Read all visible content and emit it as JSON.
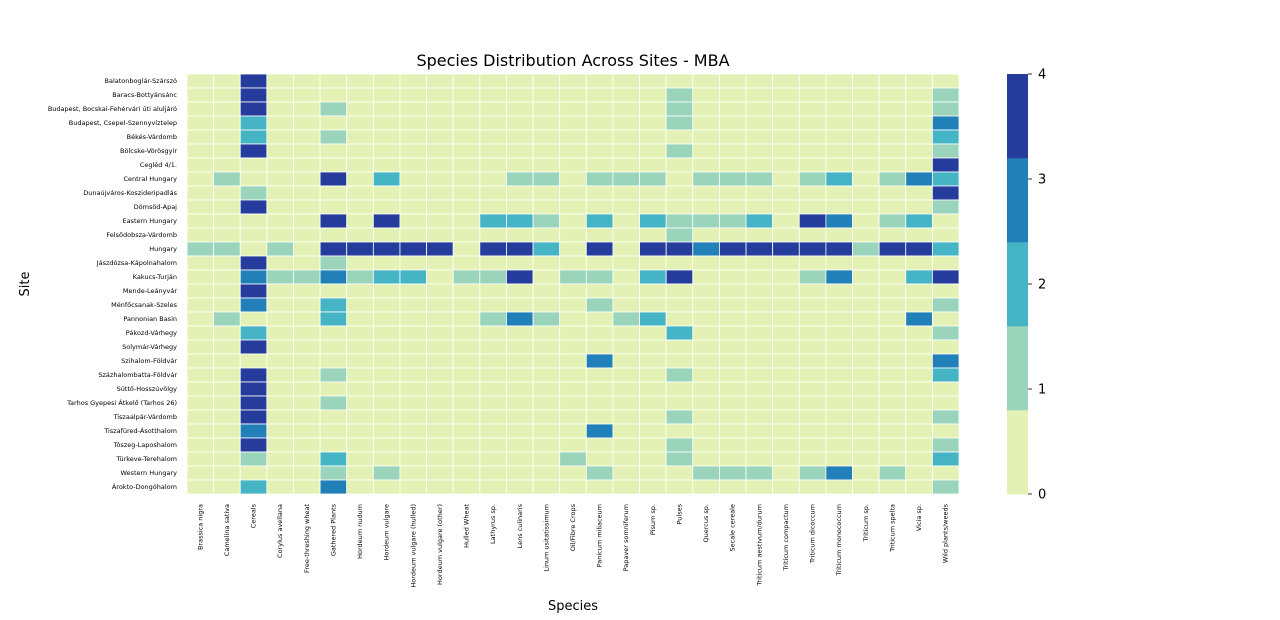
{
  "chart_data": {
    "type": "heatmap",
    "title": "Species Distribution Across Sites - MBA",
    "xlabel": "Species",
    "ylabel": "Site",
    "colorbar": {
      "min": 0,
      "max": 4,
      "ticks": [
        "0",
        "1",
        "2",
        "3",
        "4"
      ],
      "colors": [
        "#e3f2b4",
        "#99d4bb",
        "#45b4c4",
        "#2180b8",
        "#253c9c"
      ]
    },
    "columns": [
      "Brassica nigra",
      "Camelina sativa",
      "Cereals",
      "Corylus avellana",
      "Free-threshing wheat",
      "Gathered Plants",
      "Hordeum nudum",
      "Hordeum vulgare",
      "Hordeum vulgare (hulled)",
      "Hordeum vulgare (other)",
      "Hulled Wheat",
      "Lathyrus sp.",
      "Lens culinaris",
      "Linum usitatissimum",
      "Oil/Fibre Crops",
      "Panicum miliaceum",
      "Papaver somniferum",
      "Pisum sp.",
      "Pulses",
      "Quercus sp.",
      "Secale cereale",
      "Triticum aestivum/durum",
      "Triticum compactum",
      "Triticum dicoccum",
      "Triticum monococcum",
      "Triticum sp.",
      "Triticum spelta",
      "Vicia sp.",
      "Wild plants/weeds"
    ],
    "rows": [
      "Balatonboglár-Szárszó",
      "Baracs-Bottyánsánc",
      "Budapest, Bocskai-Fehérvári úti aluljáró",
      "Budapest, Csepel-Szennyvíztelep",
      "Békés-Várdomb",
      "Bölcske-Vörösgyír",
      "Cegléd 4/1.",
      "Central Hungary",
      "Dunaújváros-Koszideripadlás",
      "Dömsöd-Apaj",
      "Eastern Hungary",
      "Felsődobsza-Várdomb",
      "Hungary",
      "Jászdózsa-Kápolnahalom",
      "Kakucs-Turján",
      "Mende-Leányvár",
      "Ménfőcsanak-Szeles",
      "Pannonian Basin",
      "Pákozd-Várhegy",
      "Solymár-Várhegy",
      "Szihalom-Földvár",
      "Százhalombatta-Földvár",
      "Süttő-Hosszúvölgy",
      "Tarhos Gyepesi Átkelő (Tarhos 26)",
      "Tiszaalpár-Várdomb",
      "Tiszafüred-Ásotthalom",
      "Tószeg-Laposhalom",
      "Türkeve-Terehalom",
      "Western Hungary",
      "Árokto-Dongóhalom"
    ],
    "values": [
      [
        0,
        0,
        4,
        0,
        0,
        0,
        0,
        0,
        0,
        0,
        0,
        0,
        0,
        0,
        0,
        0,
        0,
        0,
        0,
        0,
        0,
        0,
        0,
        0,
        0,
        0,
        0,
        0,
        0
      ],
      [
        0,
        0,
        4,
        0,
        0,
        0,
        0,
        0,
        0,
        0,
        0,
        0,
        0,
        0,
        0,
        0,
        0,
        0,
        1,
        0,
        0,
        0,
        0,
        0,
        0,
        0,
        0,
        0,
        1
      ],
      [
        0,
        0,
        4,
        0,
        0,
        1,
        0,
        0,
        0,
        0,
        0,
        0,
        0,
        0,
        0,
        0,
        0,
        0,
        1,
        0,
        0,
        0,
        0,
        0,
        0,
        0,
        0,
        0,
        1
      ],
      [
        0,
        0,
        2,
        0,
        0,
        0,
        0,
        0,
        0,
        0,
        0,
        0,
        0,
        0,
        0,
        0,
        0,
        0,
        1,
        0,
        0,
        0,
        0,
        0,
        0,
        0,
        0,
        0,
        3
      ],
      [
        0,
        0,
        2,
        0,
        0,
        1,
        0,
        0,
        0,
        0,
        0,
        0,
        0,
        0,
        0,
        0,
        0,
        0,
        0,
        0,
        0,
        0,
        0,
        0,
        0,
        0,
        0,
        0,
        2
      ],
      [
        0,
        0,
        4,
        0,
        0,
        0,
        0,
        0,
        0,
        0,
        0,
        0,
        0,
        0,
        0,
        0,
        0,
        0,
        1,
        0,
        0,
        0,
        0,
        0,
        0,
        0,
        0,
        0,
        1
      ],
      [
        0,
        0,
        0,
        0,
        0,
        0,
        0,
        0,
        0,
        0,
        0,
        0,
        0,
        0,
        0,
        0,
        0,
        0,
        0,
        0,
        0,
        0,
        0,
        0,
        0,
        0,
        0,
        0,
        4
      ],
      [
        0,
        1,
        0,
        0,
        0,
        4,
        0,
        2,
        0,
        0,
        0,
        0,
        1,
        1,
        0,
        1,
        1,
        1,
        0,
        1,
        1,
        1,
        0,
        1,
        2,
        0,
        1,
        3,
        2
      ],
      [
        0,
        0,
        1,
        0,
        0,
        0,
        0,
        0,
        0,
        0,
        0,
        0,
        0,
        0,
        0,
        0,
        0,
        0,
        0,
        0,
        0,
        0,
        0,
        0,
        0,
        0,
        0,
        0,
        4
      ],
      [
        0,
        0,
        4,
        0,
        0,
        0,
        0,
        0,
        0,
        0,
        0,
        0,
        0,
        0,
        0,
        0,
        0,
        0,
        0,
        0,
        0,
        0,
        0,
        0,
        0,
        0,
        0,
        0,
        1
      ],
      [
        0,
        0,
        0,
        0,
        0,
        4,
        0,
        4,
        0,
        0,
        0,
        2,
        2,
        1,
        0,
        2,
        0,
        2,
        1,
        1,
        1,
        2,
        0,
        4,
        3,
        0,
        1,
        2,
        0
      ],
      [
        0,
        0,
        0,
        0,
        0,
        0,
        0,
        0,
        0,
        0,
        0,
        0,
        0,
        0,
        0,
        0,
        0,
        0,
        1,
        0,
        0,
        0,
        0,
        0,
        0,
        0,
        0,
        0,
        0
      ],
      [
        1,
        1,
        0,
        1,
        0,
        4,
        4,
        4,
        4,
        4,
        0,
        4,
        4,
        2,
        0,
        4,
        0,
        4,
        4,
        3,
        4,
        4,
        4,
        4,
        4,
        1,
        4,
        4,
        2
      ],
      [
        0,
        0,
        4,
        0,
        0,
        1,
        0,
        0,
        0,
        0,
        0,
        0,
        0,
        0,
        0,
        0,
        0,
        0,
        0,
        0,
        0,
        0,
        0,
        0,
        0,
        0,
        0,
        0,
        0
      ],
      [
        0,
        0,
        3,
        1,
        1,
        3,
        1,
        2,
        2,
        0,
        1,
        1,
        4,
        0,
        1,
        1,
        0,
        2,
        4,
        0,
        0,
        0,
        0,
        1,
        3,
        0,
        0,
        2,
        4
      ],
      [
        0,
        0,
        4,
        0,
        0,
        0,
        0,
        0,
        0,
        0,
        0,
        0,
        0,
        0,
        0,
        0,
        0,
        0,
        0,
        0,
        0,
        0,
        0,
        0,
        0,
        0,
        0,
        0,
        0
      ],
      [
        0,
        0,
        3,
        0,
        0,
        2,
        0,
        0,
        0,
        0,
        0,
        0,
        0,
        0,
        0,
        1,
        0,
        0,
        0,
        0,
        0,
        0,
        0,
        0,
        0,
        0,
        0,
        0,
        1
      ],
      [
        0,
        1,
        0,
        0,
        0,
        2,
        0,
        0,
        0,
        0,
        0,
        1,
        3,
        1,
        0,
        0,
        1,
        2,
        0,
        0,
        0,
        0,
        0,
        0,
        0,
        0,
        0,
        3,
        0
      ],
      [
        0,
        0,
        2,
        0,
        0,
        0,
        0,
        0,
        0,
        0,
        0,
        0,
        0,
        0,
        0,
        0,
        0,
        0,
        2,
        0,
        0,
        0,
        0,
        0,
        0,
        0,
        0,
        0,
        1
      ],
      [
        0,
        0,
        4,
        0,
        0,
        0,
        0,
        0,
        0,
        0,
        0,
        0,
        0,
        0,
        0,
        0,
        0,
        0,
        0,
        0,
        0,
        0,
        0,
        0,
        0,
        0,
        0,
        0,
        0
      ],
      [
        0,
        0,
        0,
        0,
        0,
        0,
        0,
        0,
        0,
        0,
        0,
        0,
        0,
        0,
        0,
        3,
        0,
        0,
        0,
        0,
        0,
        0,
        0,
        0,
        0,
        0,
        0,
        0,
        3
      ],
      [
        0,
        0,
        4,
        0,
        0,
        1,
        0,
        0,
        0,
        0,
        0,
        0,
        0,
        0,
        0,
        0,
        0,
        0,
        1,
        0,
        0,
        0,
        0,
        0,
        0,
        0,
        0,
        0,
        2
      ],
      [
        0,
        0,
        4,
        0,
        0,
        0,
        0,
        0,
        0,
        0,
        0,
        0,
        0,
        0,
        0,
        0,
        0,
        0,
        0,
        0,
        0,
        0,
        0,
        0,
        0,
        0,
        0,
        0,
        0
      ],
      [
        0,
        0,
        4,
        0,
        0,
        1,
        0,
        0,
        0,
        0,
        0,
        0,
        0,
        0,
        0,
        0,
        0,
        0,
        0,
        0,
        0,
        0,
        0,
        0,
        0,
        0,
        0,
        0,
        0
      ],
      [
        0,
        0,
        4,
        0,
        0,
        0,
        0,
        0,
        0,
        0,
        0,
        0,
        0,
        0,
        0,
        0,
        0,
        0,
        1,
        0,
        0,
        0,
        0,
        0,
        0,
        0,
        0,
        0,
        1
      ],
      [
        0,
        0,
        3,
        0,
        0,
        0,
        0,
        0,
        0,
        0,
        0,
        0,
        0,
        0,
        0,
        3,
        0,
        0,
        0,
        0,
        0,
        0,
        0,
        0,
        0,
        0,
        0,
        0,
        0
      ],
      [
        0,
        0,
        4,
        0,
        0,
        0,
        0,
        0,
        0,
        0,
        0,
        0,
        0,
        0,
        0,
        0,
        0,
        0,
        1,
        0,
        0,
        0,
        0,
        0,
        0,
        0,
        0,
        0,
        1
      ],
      [
        0,
        0,
        1,
        0,
        0,
        2,
        0,
        0,
        0,
        0,
        0,
        0,
        0,
        0,
        1,
        0,
        0,
        0,
        1,
        0,
        0,
        0,
        0,
        0,
        0,
        0,
        0,
        0,
        2
      ],
      [
        0,
        0,
        0,
        0,
        0,
        1,
        0,
        1,
        0,
        0,
        0,
        0,
        0,
        0,
        0,
        1,
        0,
        0,
        0,
        1,
        1,
        1,
        0,
        1,
        3,
        0,
        1,
        0,
        0
      ],
      [
        0,
        0,
        2,
        0,
        0,
        3,
        0,
        0,
        0,
        0,
        0,
        0,
        0,
        0,
        0,
        0,
        0,
        0,
        0,
        0,
        0,
        0,
        0,
        0,
        0,
        0,
        0,
        0,
        1
      ]
    ]
  }
}
